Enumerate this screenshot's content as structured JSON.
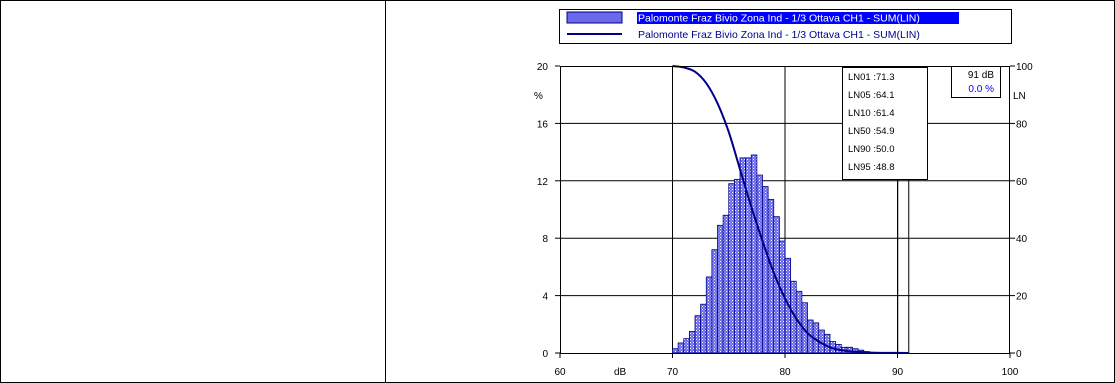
{
  "legend": {
    "bar_series_label": "Palomonte Fraz Bivio Zona Ind - 1/3 Ottava CH1 - SUM(LIN)",
    "line_series_label": "Palomonte Fraz Bivio Zona Ind - 1/3 Ottava CH1 - SUM(LIN)"
  },
  "stats_box": {
    "items": [
      "LN01 :71.3",
      "LN05 :64.1",
      "LN10 :61.4",
      "LN50 :54.9",
      "LN90 :50.0",
      "LN95 :48.8"
    ]
  },
  "cursor_box": {
    "level": "91 dB",
    "percent": "0.0 %"
  },
  "colors": {
    "bar_fill": "#4a4ae0",
    "line": "#00008b",
    "highlight": "#0000ff"
  },
  "chart_data": {
    "type": "bar",
    "xlabel": "dB",
    "ylabel_left": "%",
    "ylabel_right": "LN",
    "xlim": [
      60,
      100
    ],
    "ylim_left": [
      0,
      20
    ],
    "ylim_right": [
      0,
      100
    ],
    "x_ticks": [
      60,
      70,
      80,
      90,
      100
    ],
    "y_left_ticks": [
      0,
      4,
      8,
      12,
      16,
      20
    ],
    "y_right_ticks": [
      0,
      20,
      40,
      60,
      80,
      100
    ],
    "grid": true,
    "bar_width_db": 0.5,
    "series": [
      {
        "name": "Palomonte Fraz Bivio Zona Ind - 1/3 Ottava CH1 - SUM(LIN)",
        "kind": "histogram",
        "x": [
          70,
          70.5,
          71,
          71.5,
          72,
          72.5,
          73,
          73.5,
          74,
          74.5,
          75,
          75.5,
          76,
          76.5,
          77,
          77.5,
          78,
          78.5,
          79,
          79.5,
          80,
          80.5,
          81,
          81.5,
          82,
          82.5,
          83,
          83.5,
          84,
          84.5,
          85,
          85.5,
          86,
          86.5,
          87
        ],
        "values": [
          0.3,
          0.7,
          1.0,
          1.5,
          2.6,
          3.4,
          5.3,
          7.2,
          8.9,
          9.6,
          11.8,
          12.1,
          13.6,
          13.6,
          13.8,
          12.4,
          11.6,
          10.7,
          9.5,
          7.8,
          6.6,
          5.0,
          4.3,
          3.5,
          2.3,
          2.1,
          1.6,
          1.3,
          0.8,
          0.6,
          0.4,
          0.4,
          0.3,
          0.2,
          0.1
        ]
      },
      {
        "name": "Palomonte Fraz Bivio Zona Ind - 1/3 Ottava CH1 - SUM(LIN)",
        "kind": "cumulative_line",
        "x": [
          70,
          71,
          72,
          73,
          74,
          75,
          76,
          77,
          78,
          79,
          80,
          81,
          82,
          83,
          84,
          85,
          86,
          87,
          88,
          90,
          91
        ],
        "values": [
          100,
          99.5,
          98,
          94,
          87,
          77,
          64,
          51,
          39,
          28,
          19,
          12,
          7,
          4,
          2,
          1,
          0.5,
          0.3,
          0.1,
          0.05,
          0
        ]
      }
    ],
    "cursor_x": 91
  }
}
